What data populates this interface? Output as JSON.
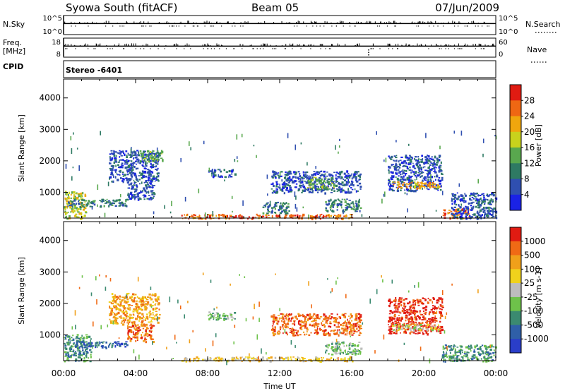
{
  "header": {
    "title": "Syowa South (fitACF)",
    "beam": "Beam 05",
    "date": "07/Jun/2009"
  },
  "strips": {
    "nsky_label": "N.Sky",
    "nsky_ticks": [
      "10^5",
      "10^0"
    ],
    "nsearch_label": "N.Search",
    "nsearch_ticks": [
      "10^5",
      "10^0"
    ],
    "freq_label_line1": "Freq.",
    "freq_label_line2": "[MHz]",
    "freq_ticks": [
      "18",
      "8"
    ],
    "nave_label": "Nave",
    "nave_ticks": [
      "60",
      "0"
    ],
    "cpid_label": "CPID",
    "cpid_value": "Stereo -6401"
  },
  "chart_data": [
    {
      "type": "heatmap",
      "name": "power",
      "title": "",
      "xlabel": "",
      "ylabel": "Slant Range [km]",
      "ylim": [
        180,
        4600
      ],
      "yticks": [
        1000,
        2000,
        3000,
        4000
      ],
      "xlim": [
        0,
        24
      ],
      "colorbar_label": "Power [dB]",
      "colorbar_ticks": [
        "4",
        "8",
        "12",
        "16",
        "20",
        "24",
        "28"
      ],
      "colorbar_colors": [
        "#1a22e6",
        "#2f4fb0",
        "#2e7a63",
        "#59a84e",
        "#c9d21c",
        "#f0a60d",
        "#ef6713",
        "#e01b12"
      ],
      "regions": [
        {
          "t0": 0.0,
          "t1": 1.2,
          "r0": 180,
          "r1": 1050,
          "level": 4
        },
        {
          "t0": 0.2,
          "t1": 3.5,
          "r0": 550,
          "r1": 800,
          "level": 2
        },
        {
          "t0": 2.5,
          "t1": 5.3,
          "r0": 1350,
          "r1": 2350,
          "level": 1
        },
        {
          "t0": 3.5,
          "t1": 5.0,
          "r0": 800,
          "r1": 1350,
          "level": 1
        },
        {
          "t0": 4.2,
          "t1": 5.5,
          "r0": 2000,
          "r1": 2350,
          "level": 3
        },
        {
          "t0": 6.5,
          "t1": 16.0,
          "r0": 180,
          "r1": 320,
          "level": 6
        },
        {
          "t0": 8.0,
          "t1": 9.5,
          "r0": 1500,
          "r1": 1750,
          "level": 1
        },
        {
          "t0": 11.0,
          "t1": 12.5,
          "r0": 350,
          "r1": 700,
          "level": 2
        },
        {
          "t0": 11.5,
          "t1": 16.5,
          "r0": 1000,
          "r1": 1700,
          "level": 1
        },
        {
          "t0": 13.5,
          "t1": 15.0,
          "r0": 1100,
          "r1": 1500,
          "level": 3
        },
        {
          "t0": 14.5,
          "t1": 16.5,
          "r0": 400,
          "r1": 800,
          "level": 2
        },
        {
          "t0": 18.0,
          "t1": 21.0,
          "r0": 1050,
          "r1": 2200,
          "level": 1
        },
        {
          "t0": 18.2,
          "t1": 20.8,
          "r0": 1150,
          "r1": 1350,
          "level": 5
        },
        {
          "t0": 21.0,
          "t1": 22.5,
          "r0": 180,
          "r1": 500,
          "level": 6
        },
        {
          "t0": 21.5,
          "t1": 24.0,
          "r0": 180,
          "r1": 1000,
          "level": 1
        }
      ]
    },
    {
      "type": "heatmap",
      "name": "velocity",
      "title": "",
      "xlabel": "Time UT",
      "ylabel": "Slant Range [km]",
      "ylim": [
        180,
        4600
      ],
      "yticks": [
        1000,
        2000,
        3000,
        4000
      ],
      "xlim": [
        0,
        24
      ],
      "xticks": [
        "00:00",
        "04:00",
        "08:00",
        "12:00",
        "16:00",
        "20:00",
        "00:00"
      ],
      "colorbar_label": "Velocity [m s-1]",
      "colorbar_ticks": [
        "1000",
        "500",
        "100",
        "25",
        "-25",
        "-100",
        "-500",
        "-1000"
      ],
      "colorbar_colors": [
        "#2a3ec9",
        "#2f5fa8",
        "#3b8a70",
        "#6ec24a",
        "#bdbdbd",
        "#f0d21c",
        "#f0a01a",
        "#f06a15",
        "#e01b12"
      ],
      "regions": [
        {
          "t0": 0.0,
          "t1": 1.5,
          "r0": 180,
          "r1": 1050,
          "level": 2
        },
        {
          "t0": 0.5,
          "t1": 3.5,
          "r0": 600,
          "r1": 800,
          "level": 1
        },
        {
          "t0": 2.5,
          "t1": 5.3,
          "r0": 1350,
          "r1": 2350,
          "level": 6
        },
        {
          "t0": 3.5,
          "t1": 5.0,
          "r0": 800,
          "r1": 1350,
          "level": 7
        },
        {
          "t0": 6.5,
          "t1": 16.0,
          "r0": 180,
          "r1": 320,
          "level": 5
        },
        {
          "t0": 8.0,
          "t1": 9.5,
          "r0": 1500,
          "r1": 1750,
          "level": 3
        },
        {
          "t0": 11.5,
          "t1": 16.5,
          "r0": 1000,
          "r1": 1700,
          "level": 7
        },
        {
          "t0": 14.5,
          "t1": 16.5,
          "r0": 400,
          "r1": 800,
          "level": 3
        },
        {
          "t0": 18.0,
          "t1": 21.0,
          "r0": 1050,
          "r1": 2200,
          "level": 8
        },
        {
          "t0": 18.2,
          "t1": 20.8,
          "r0": 1150,
          "r1": 1350,
          "level": 4
        },
        {
          "t0": 21.0,
          "t1": 24.0,
          "r0": 180,
          "r1": 700,
          "level": 2
        }
      ]
    }
  ]
}
